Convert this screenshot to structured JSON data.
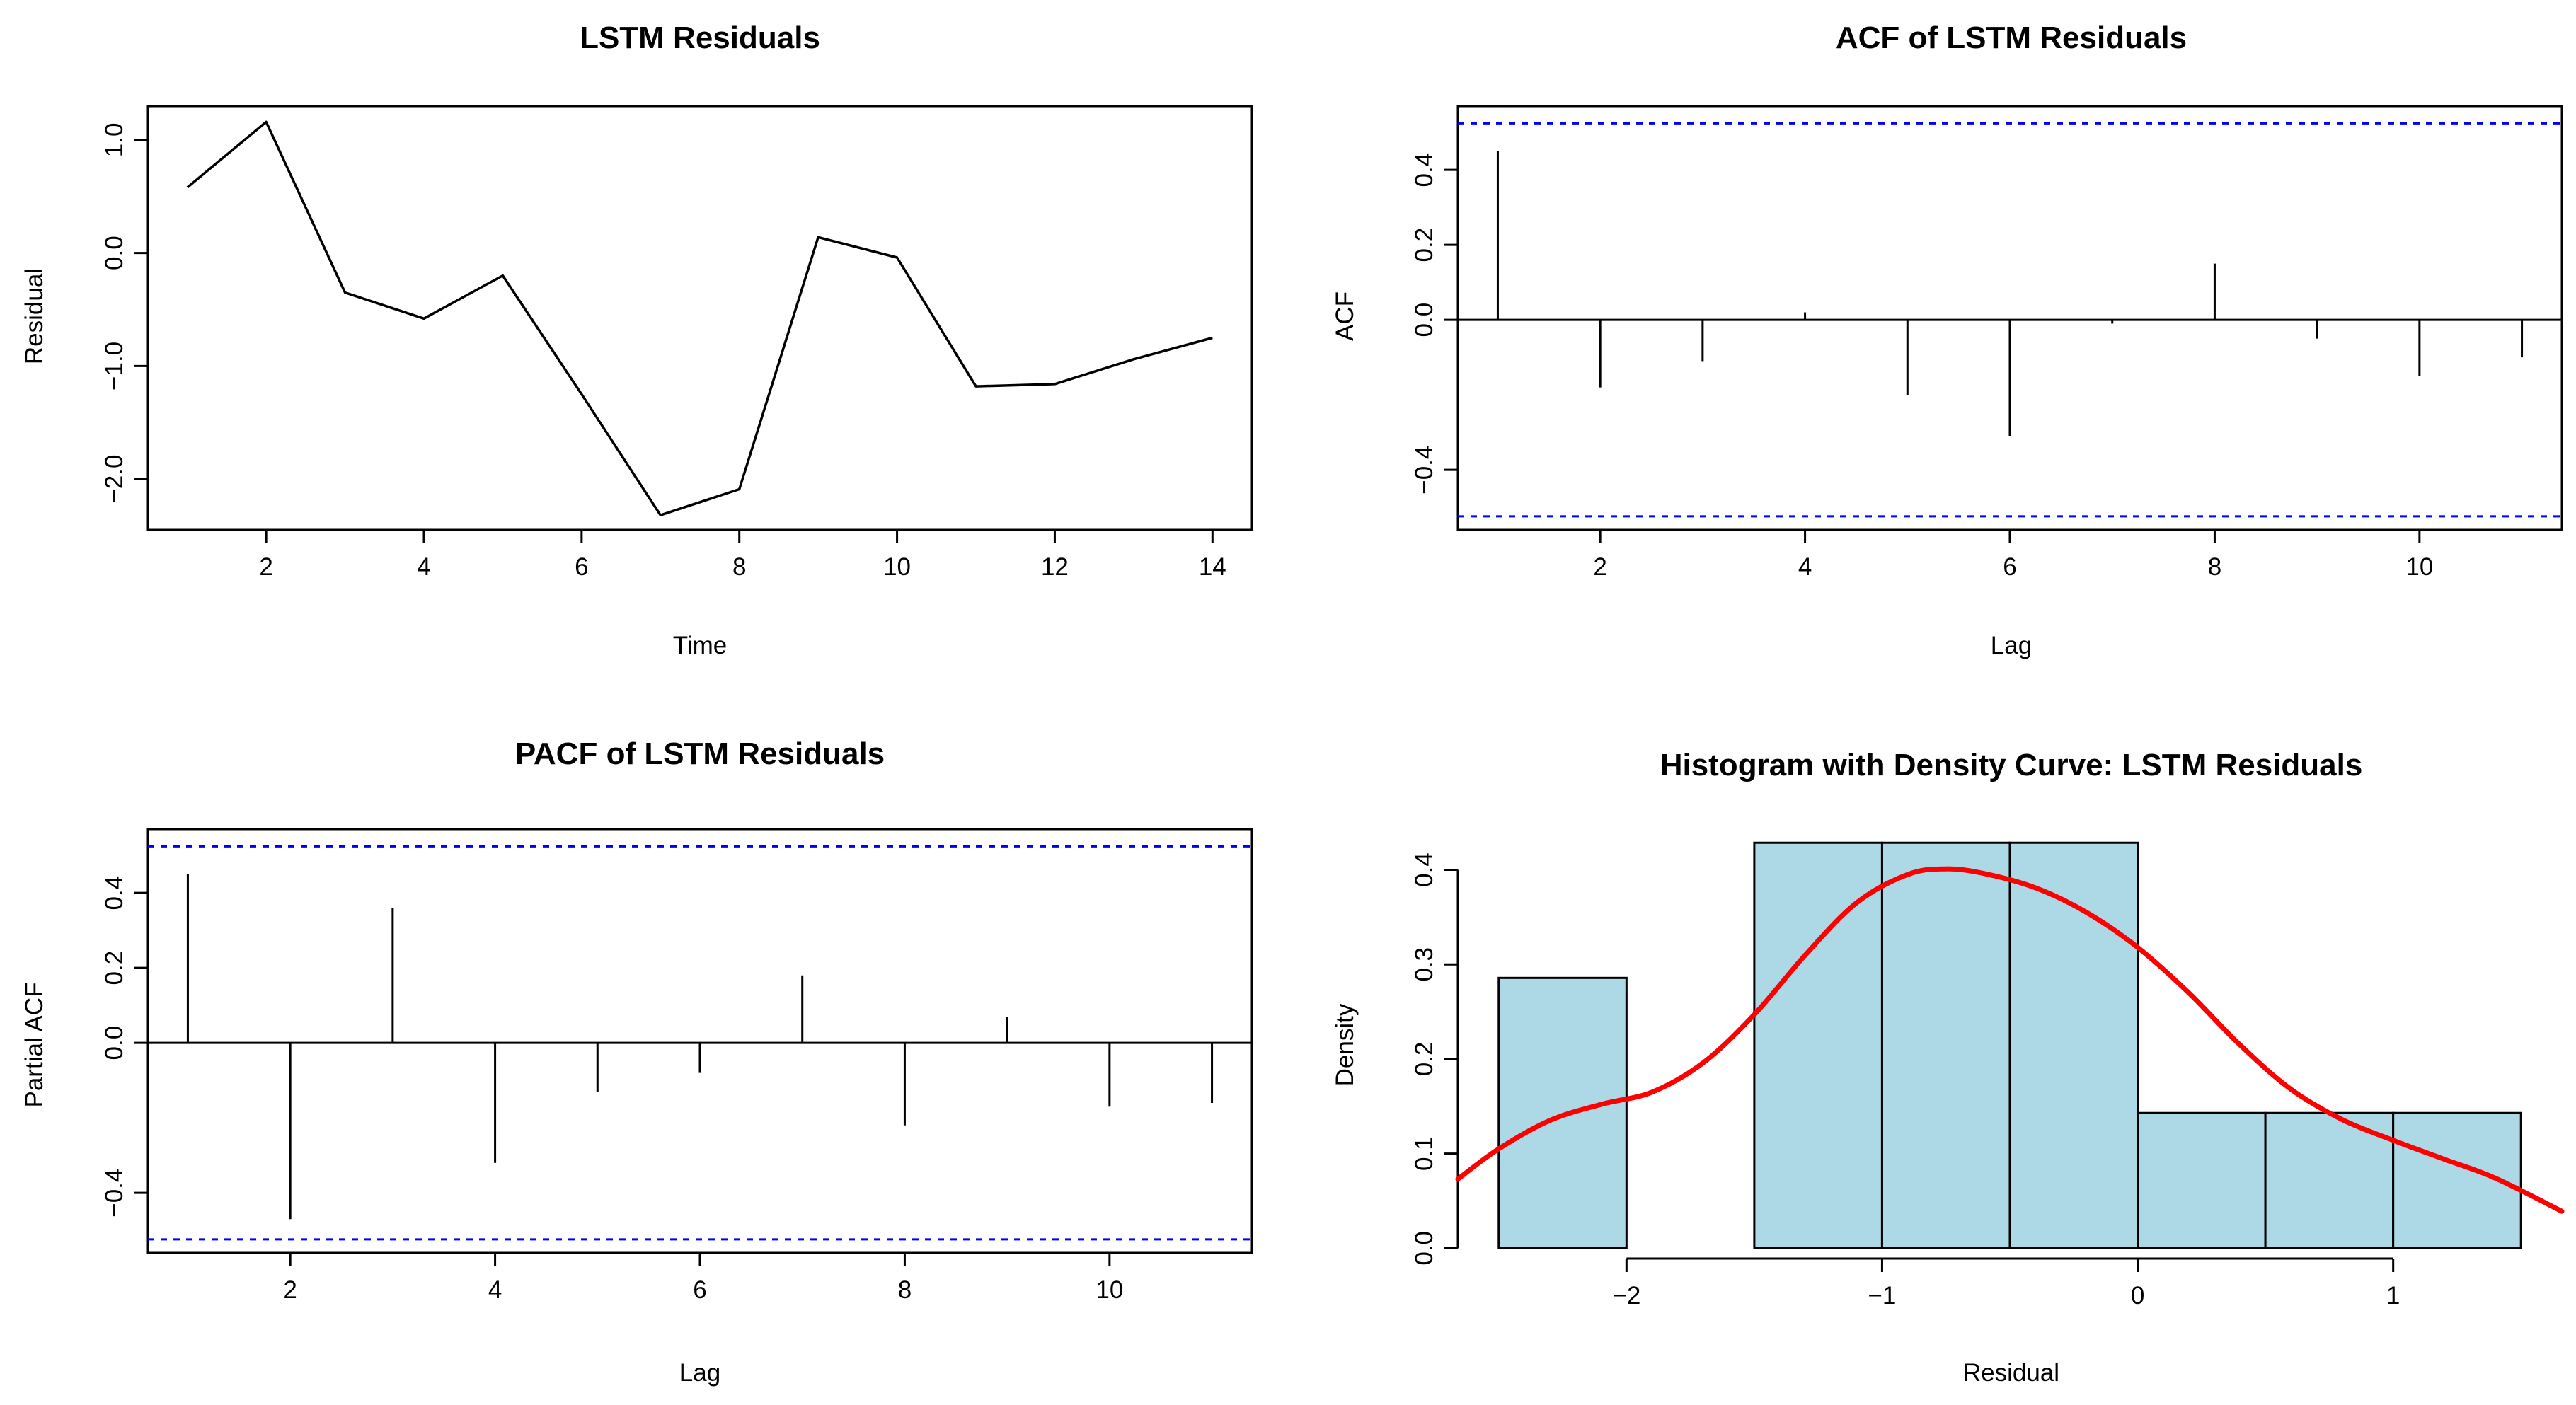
{
  "chart_data": [
    {
      "type": "line",
      "title": "LSTM Residuals",
      "xlabel": "Time",
      "ylabel": "Residual",
      "xlim": [
        0.5,
        14.5
      ],
      "ylim": [
        -2.45,
        1.3
      ],
      "x_ticks": [
        2,
        4,
        6,
        8,
        10,
        12,
        14
      ],
      "y_ticks": [
        1.0,
        0.0,
        -1.0,
        -2.0
      ],
      "y_tick_labels": [
        "1.0",
        "0.0",
        "−1.0",
        "−2.0"
      ],
      "x": [
        1,
        2,
        3,
        4,
        5,
        6,
        7,
        8,
        9,
        10,
        11,
        12,
        13,
        14
      ],
      "y": [
        0.58,
        1.16,
        -0.35,
        -0.58,
        -0.2,
        -1.25,
        -2.32,
        -2.09,
        0.14,
        -0.04,
        -1.18,
        -1.16,
        -0.94,
        -0.75
      ],
      "grid": false
    },
    {
      "type": "bar",
      "title": "ACF of LSTM Residuals",
      "xlabel": "Lag",
      "ylabel": "ACF",
      "xlim": [
        0.61,
        11.39
      ],
      "ylim": [
        -0.56,
        0.57
      ],
      "x_ticks": [
        2,
        4,
        6,
        8,
        10
      ],
      "y_ticks": [
        0.4,
        0.2,
        0.0,
        -0.4
      ],
      "y_tick_labels": [
        "0.4",
        "0.2",
        "0.0",
        "−0.4"
      ],
      "lags": [
        1,
        2,
        3,
        4,
        5,
        6,
        7,
        8,
        9,
        10,
        11
      ],
      "values": [
        0.45,
        -0.18,
        -0.11,
        0.02,
        -0.2,
        -0.31,
        -0.01,
        0.15,
        -0.05,
        -0.15,
        -0.1
      ],
      "confidence_bounds": [
        0.524,
        -0.524
      ],
      "bound_color": "#0000ff",
      "grid": false
    },
    {
      "type": "bar",
      "title": "PACF of LSTM Residuals",
      "xlabel": "Lag",
      "ylabel": "Partial ACF",
      "xlim": [
        0.61,
        11.39
      ],
      "ylim": [
        -0.56,
        0.57
      ],
      "x_ticks": [
        2,
        4,
        6,
        8,
        10
      ],
      "y_ticks": [
        0.4,
        0.2,
        0.0,
        -0.4
      ],
      "y_tick_labels": [
        "0.4",
        "0.2",
        "0.0",
        "−0.4"
      ],
      "lags": [
        1,
        2,
        3,
        4,
        5,
        6,
        7,
        8,
        9,
        10,
        11
      ],
      "values": [
        0.45,
        -0.47,
        0.36,
        -0.32,
        -0.13,
        -0.08,
        0.18,
        -0.22,
        0.07,
        -0.17,
        -0.16
      ],
      "confidence_bounds": [
        0.524,
        -0.524
      ],
      "bound_color": "#0000ff",
      "grid": false
    },
    {
      "type": "histogram",
      "title": "Histogram with Density Curve: LSTM Residuals",
      "xlabel": "Residual",
      "ylabel": "Density",
      "xlim": [
        -2.66,
        1.66
      ],
      "ylim": [
        -0.005,
        0.443
      ],
      "x_ticks": [
        -2,
        -1,
        0,
        1
      ],
      "x_tick_labels": [
        "−2",
        "−1",
        "0",
        "1"
      ],
      "y_ticks": [
        0.0,
        0.1,
        0.2,
        0.3,
        0.4
      ],
      "y_tick_labels": [
        "0.0",
        "0.1",
        "0.2",
        "0.3",
        "0.4"
      ],
      "bin_edges": [
        -2.5,
        -2.0,
        -1.5,
        -1.0,
        -0.5,
        0.0,
        0.5,
        1.0,
        1.5
      ],
      "densities": [
        0.2857,
        0.0,
        0.4286,
        0.4286,
        0.4286,
        0.1429,
        0.1429,
        0.1429
      ],
      "bar_color": "#add8e6",
      "density_curve": {
        "color": "#ff0000",
        "x": [
          -2.66,
          -2.5,
          -2.3,
          -2.1,
          -1.9,
          -1.7,
          -1.5,
          -1.3,
          -1.1,
          -0.9,
          -0.75,
          -0.6,
          -0.4,
          -0.2,
          0.0,
          0.2,
          0.4,
          0.6,
          0.8,
          1.0,
          1.2,
          1.4,
          1.66
        ],
        "y": [
          0.073,
          0.105,
          0.135,
          0.152,
          0.165,
          0.196,
          0.247,
          0.31,
          0.365,
          0.395,
          0.401,
          0.396,
          0.381,
          0.355,
          0.318,
          0.27,
          0.215,
          0.168,
          0.136,
          0.114,
          0.094,
          0.074,
          0.039
        ]
      },
      "grid": false
    }
  ]
}
